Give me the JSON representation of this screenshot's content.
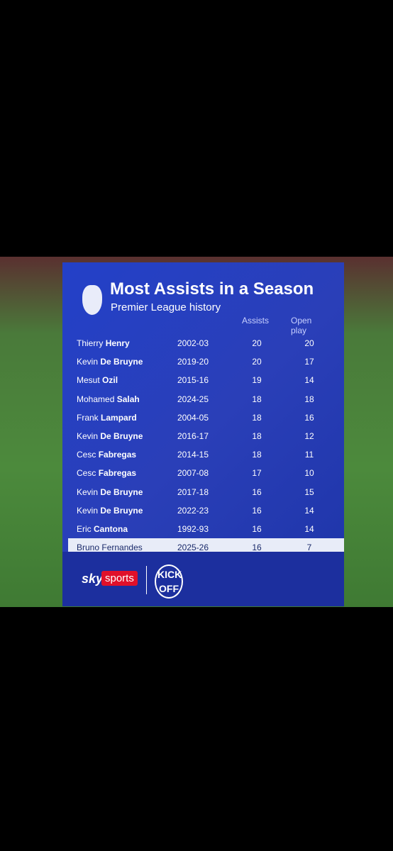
{
  "header": {
    "title": "Most Assists in a Season",
    "subtitle": "Premier League history"
  },
  "table": {
    "columns": [
      "Assists",
      "Open play"
    ],
    "rows": [
      {
        "first": "Thierry",
        "last": "Henry",
        "season": "2002-03",
        "assists": 20,
        "open_play": 20
      },
      {
        "first": "Kevin",
        "last": "De Bruyne",
        "season": "2019-20",
        "assists": 20,
        "open_play": 17
      },
      {
        "first": "Mesut",
        "last": "Ozil",
        "season": "2015-16",
        "assists": 19,
        "open_play": 14
      },
      {
        "first": "Mohamed",
        "last": "Salah",
        "season": "2024-25",
        "assists": 18,
        "open_play": 18
      },
      {
        "first": "Frank",
        "last": "Lampard",
        "season": "2004-05",
        "assists": 18,
        "open_play": 16
      },
      {
        "first": "Kevin",
        "last": "De Bruyne",
        "season": "2016-17",
        "assists": 18,
        "open_play": 12
      },
      {
        "first": "Cesc",
        "last": "Fabregas",
        "season": "2014-15",
        "assists": 18,
        "open_play": 11
      },
      {
        "first": "Cesc",
        "last": "Fabregas",
        "season": "2007-08",
        "assists": 17,
        "open_play": 10
      },
      {
        "first": "Kevin",
        "last": "De Bruyne",
        "season": "2017-18",
        "assists": 16,
        "open_play": 15
      },
      {
        "first": "Kevin",
        "last": "De Bruyne",
        "season": "2022-23",
        "assists": 16,
        "open_play": 14
      },
      {
        "first": "Eric",
        "last": "Cantona",
        "season": "1992-93",
        "assists": 16,
        "open_play": 14
      },
      {
        "first": "Bruno",
        "last": "Fernandes",
        "season": "2025-26",
        "assists": 16,
        "open_play": 7
      }
    ]
  },
  "footer": {
    "sky": "sky",
    "sports": "sports",
    "kick": "KICK",
    "off": "OFF"
  }
}
